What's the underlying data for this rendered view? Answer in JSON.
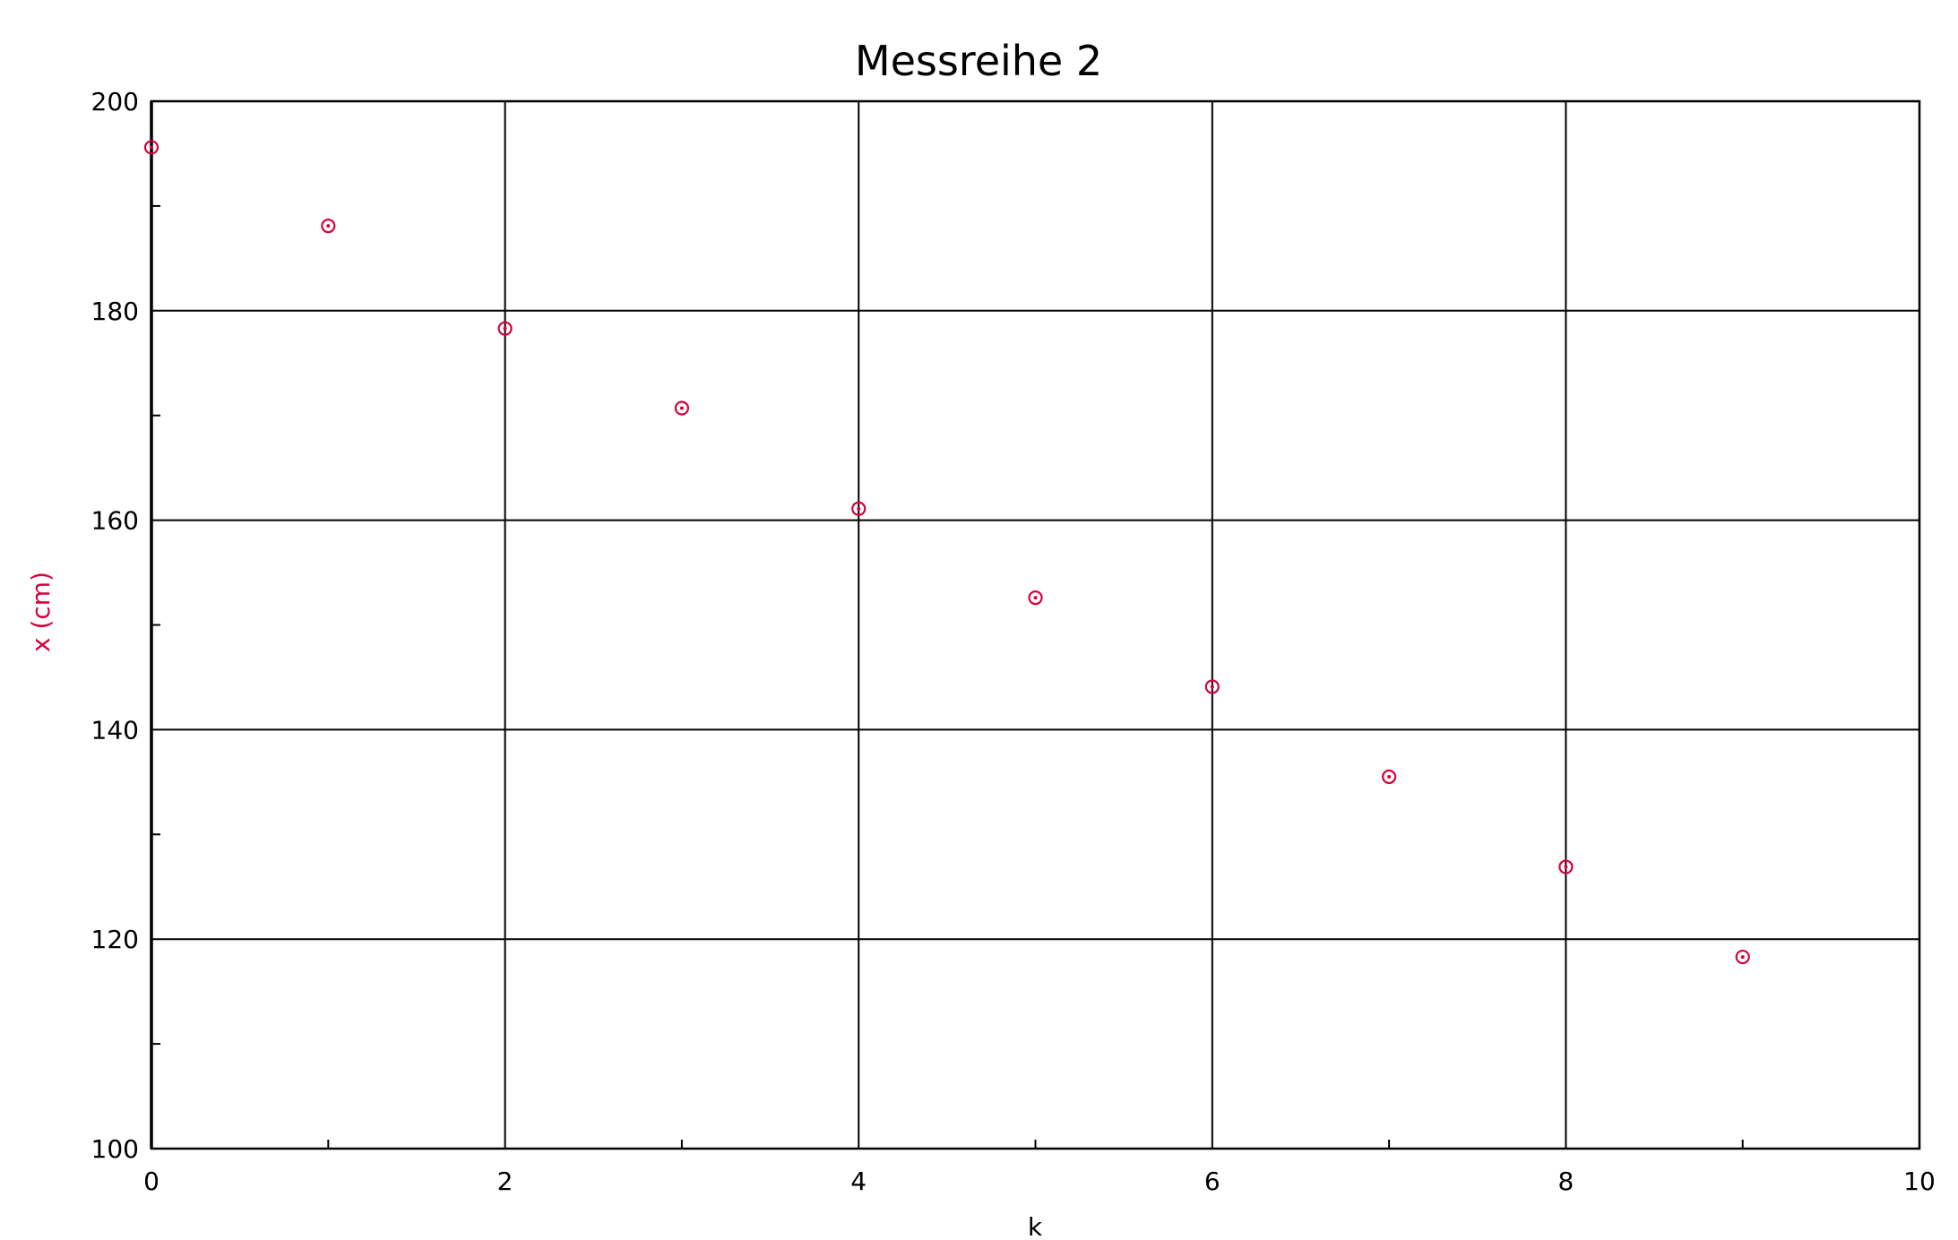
{
  "chart_data": {
    "type": "scatter",
    "title": "Messreihe 2",
    "xlabel": "k",
    "ylabel": "x (cm)",
    "xlim": [
      0,
      10
    ],
    "ylim": [
      100,
      200
    ],
    "x_ticks": [
      "0",
      "2",
      "4",
      "6",
      "8",
      "10"
    ],
    "y_ticks": [
      "100",
      "120",
      "140",
      "160",
      "180",
      "200"
    ],
    "grid": true,
    "marker": "circle-with-dot",
    "colors": {
      "points": "#d6003c",
      "ylabel": "#d6003c",
      "grid": "#000000"
    },
    "series": [
      {
        "x": [
          0,
          1,
          2,
          3,
          4,
          5,
          6,
          7,
          8,
          9
        ],
        "y": [
          195.6,
          188.1,
          178.3,
          170.7,
          161.1,
          152.6,
          144.1,
          135.5,
          126.9,
          118.3
        ]
      }
    ]
  }
}
